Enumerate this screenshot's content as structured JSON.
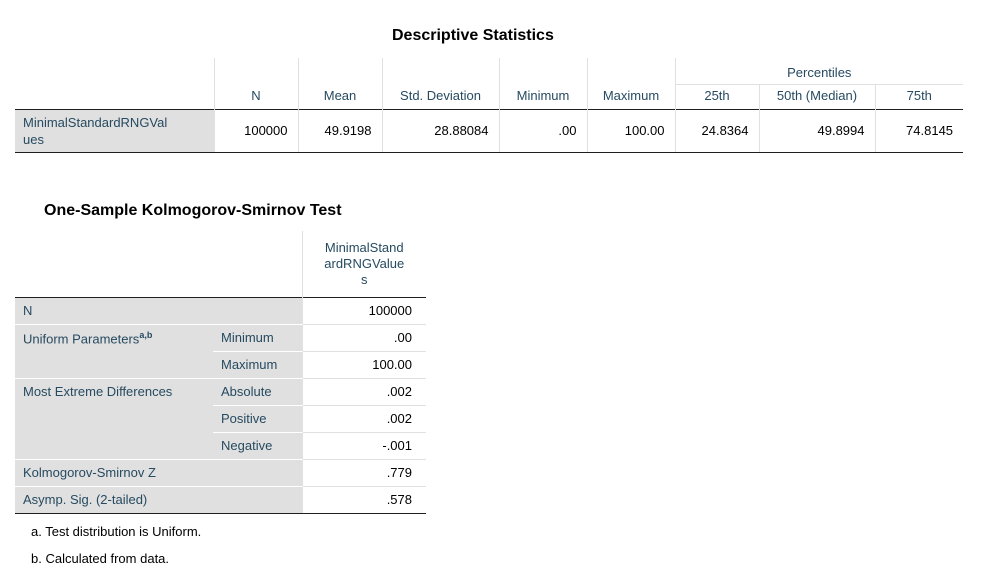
{
  "descriptive": {
    "title": "Descriptive Statistics",
    "percentiles_header": "Percentiles",
    "columns": [
      "N",
      "Mean",
      "Std. Deviation",
      "Minimum",
      "Maximum",
      "25th",
      "50th (Median)",
      "75th"
    ],
    "row_label_line1": "MinimalStandardRNGVal",
    "row_label_line2": "ues",
    "values": [
      "100000",
      "49.9198",
      "28.88084",
      ".00",
      "100.00",
      "24.8364",
      "49.8994",
      "74.8145"
    ]
  },
  "ks": {
    "title": "One-Sample Kolmogorov-Smirnov Test",
    "column_line1": "MinimalStand",
    "column_line2": "ardRNGValue",
    "column_line3": "s",
    "n_label": "N",
    "n_value": "100000",
    "uniform_label": "Uniform Parameters",
    "uniform_sup": "a,b",
    "minimum_label": "Minimum",
    "minimum_value": ".00",
    "maximum_label": "Maximum",
    "maximum_value": "100.00",
    "extreme_label": "Most Extreme Differences",
    "absolute_label": "Absolute",
    "absolute_value": ".002",
    "positive_label": "Positive",
    "positive_value": ".002",
    "negative_label": "Negative",
    "negative_value": "-.001",
    "ksz_label": "Kolmogorov-Smirnov Z",
    "ksz_value": ".779",
    "asymp_label": "Asymp. Sig. (2-tailed)",
    "asymp_value": ".578"
  },
  "footnotes": [
    "a. Test distribution is Uniform.",
    "b. Calculated from data."
  ]
}
